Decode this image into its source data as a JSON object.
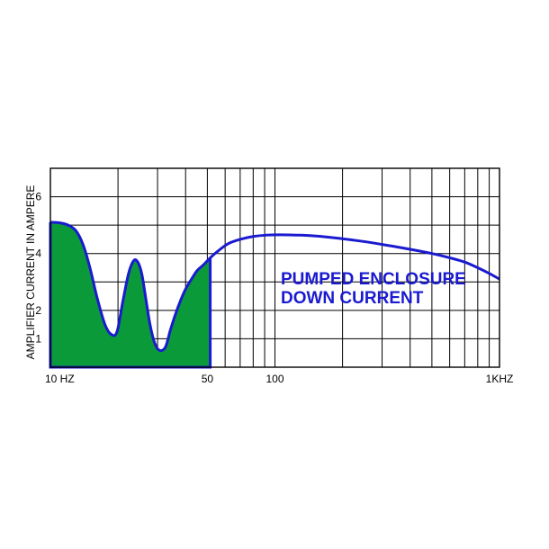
{
  "chart_data": {
    "type": "line",
    "title": "",
    "xlabel": "",
    "ylabel": "AMPLIFIER CURRENT IN AMPERE",
    "xscale": "log",
    "xlim": [
      10,
      1000
    ],
    "ylim": [
      0,
      7
    ],
    "grid": true,
    "x_tick_labels": [
      {
        "x": 10,
        "label": "10 HZ"
      },
      {
        "x": 50,
        "label": "50"
      },
      {
        "x": 100,
        "label": "100"
      },
      {
        "x": 1000,
        "label": "1KHZ"
      }
    ],
    "y_ticks": [
      1,
      2,
      4,
      6
    ],
    "annotation": [
      "PUMPED ENCLOSURE",
      "DOWN CURRENT"
    ],
    "colors": {
      "line": "#1a1ad0",
      "fill": "#0b9a3a",
      "grid": "#000000"
    },
    "filled_region": {
      "x_from": 10,
      "x_to": 51.5
    },
    "series": [
      {
        "x": [
          10,
          11,
          12,
          13,
          14,
          15,
          16.2,
          17.5,
          18.7,
          19.8,
          21,
          22.3,
          23.5,
          24.5,
          25.5,
          26.5,
          27.7,
          29,
          30.5,
          32.5,
          34.2,
          36,
          38,
          40,
          42.5,
          45,
          48,
          51.5,
          56,
          62,
          70,
          80,
          92,
          105,
          125,
          150,
          200,
          250,
          300,
          400,
          500,
          600,
          700,
          800,
          900,
          1000
        ],
        "y": [
          5.1,
          5.08,
          5.0,
          4.8,
          4.3,
          3.5,
          2.4,
          1.5,
          1.15,
          1.25,
          2.3,
          3.3,
          3.75,
          3.7,
          3.3,
          2.5,
          1.55,
          0.9,
          0.6,
          0.7,
          1.3,
          1.85,
          2.35,
          2.75,
          3.1,
          3.4,
          3.6,
          3.85,
          4.1,
          4.35,
          4.5,
          4.6,
          4.65,
          4.66,
          4.65,
          4.62,
          4.52,
          4.42,
          4.32,
          4.15,
          4.0,
          3.85,
          3.7,
          3.5,
          3.3,
          3.1
        ]
      }
    ]
  }
}
